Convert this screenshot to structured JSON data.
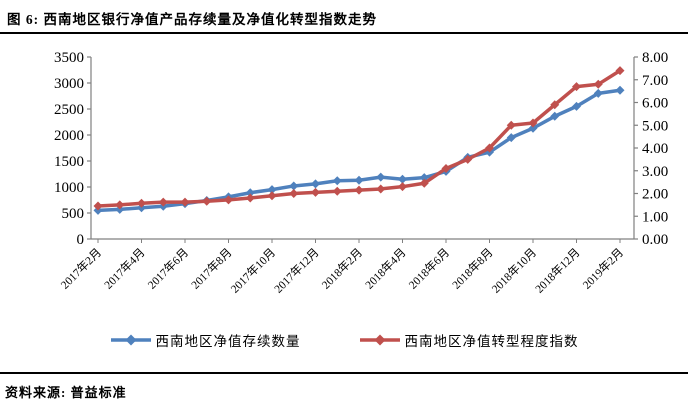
{
  "header": {
    "title": "图 6: 西南地区银行净值产品存续量及净值化转型指数走势"
  },
  "footer": {
    "source": "资料来源: 普益标准"
  },
  "legend": {
    "items": [
      {
        "label": "西南地区净值存续数量",
        "color": "#4f81bd"
      },
      {
        "label": "西南地区净值转型程度指数",
        "color": "#c0504d"
      }
    ]
  },
  "chart_data": {
    "type": "line",
    "title": "西南地区银行净值产品存续量及净值化转型指数走势",
    "x": [
      "2017年2月",
      "2017年3月",
      "2017年4月",
      "2017年5月",
      "2017年6月",
      "2017年7月",
      "2017年8月",
      "2017年9月",
      "2017年10月",
      "2017年11月",
      "2017年12月",
      "2018年1月",
      "2018年2月",
      "2018年3月",
      "2018年4月",
      "2018年5月",
      "2018年6月",
      "2018年7月",
      "2018年8月",
      "2018年9月",
      "2018年10月",
      "2018年11月",
      "2018年12月",
      "2019年1月",
      "2019年2月"
    ],
    "x_tick_labels": [
      "2017年2月",
      "2017年4月",
      "2017年6月",
      "2017年8月",
      "2017年10月",
      "2017年12月",
      "2018年2月",
      "2018年4月",
      "2018年6月",
      "2018年8月",
      "2018年10月",
      "2018年12月",
      "2019年2月"
    ],
    "series": [
      {
        "name": "西南地区净值存续数量",
        "axis": "left",
        "color": "#4f81bd",
        "marker": "diamond",
        "values": [
          550,
          570,
          600,
          630,
          680,
          740,
          810,
          890,
          950,
          1020,
          1060,
          1120,
          1130,
          1190,
          1150,
          1180,
          1300,
          1570,
          1670,
          1950,
          2130,
          2360,
          2550,
          2800,
          2860
        ]
      },
      {
        "name": "西南地区净值转型程度指数",
        "axis": "right",
        "color": "#c0504d",
        "marker": "diamond",
        "values": [
          1.45,
          1.5,
          1.57,
          1.62,
          1.62,
          1.66,
          1.72,
          1.8,
          1.9,
          2.0,
          2.05,
          2.1,
          2.15,
          2.2,
          2.3,
          2.45,
          3.1,
          3.5,
          4.0,
          5.0,
          5.1,
          5.9,
          6.7,
          6.8,
          7.4
        ]
      }
    ],
    "left_axis": {
      "min": 0,
      "max": 3500,
      "step": 500,
      "ticks": [
        "0",
        "500",
        "1000",
        "1500",
        "2000",
        "2500",
        "3000",
        "3500"
      ]
    },
    "right_axis": {
      "min": 0,
      "max": 8,
      "step": 1,
      "ticks": [
        "0.00",
        "1.00",
        "2.00",
        "3.00",
        "4.00",
        "5.00",
        "6.00",
        "7.00",
        "8.00"
      ]
    },
    "grid": false,
    "legend_position": "bottom"
  }
}
